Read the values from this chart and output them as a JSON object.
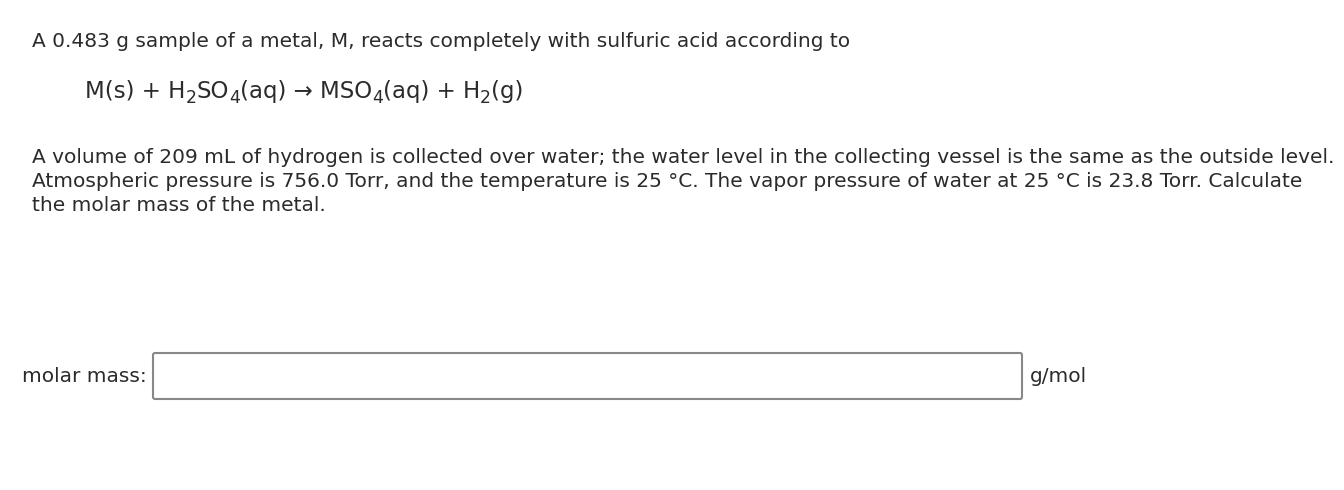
{
  "background_color": "#ffffff",
  "text_color": "#2b2b2b",
  "line1": "A 0.483 g sample of a metal, M, reacts completely with sulfuric acid according to",
  "line3": "A volume of 209 mL of hydrogen is collected over water; the water level in the collecting vessel is the same as the outside level.",
  "line4": "Atmospheric pressure is 756.0 Torr, and the temperature is 25 °C. The vapor pressure of water at 25 °C is 23.8 Torr. Calculate",
  "line5": "the molar mass of the metal.",
  "label_molar_mass": "molar mass:",
  "label_unit": "g/mol",
  "eq_parts": [
    {
      "text": "M(s) + H",
      "sub": false
    },
    {
      "text": "2",
      "sub": true
    },
    {
      "text": "SO",
      "sub": false
    },
    {
      "text": "4",
      "sub": true
    },
    {
      "text": "(aq) → MSO",
      "sub": false
    },
    {
      "text": "4",
      "sub": true
    },
    {
      "text": "(aq) + H",
      "sub": false
    },
    {
      "text": "2",
      "sub": true
    },
    {
      "text": "(g)",
      "sub": false
    }
  ],
  "font_size_main": 14.5,
  "font_size_eq": 16.5,
  "font_size_eq_sub": 12.5,
  "font_size_label": 14.5
}
